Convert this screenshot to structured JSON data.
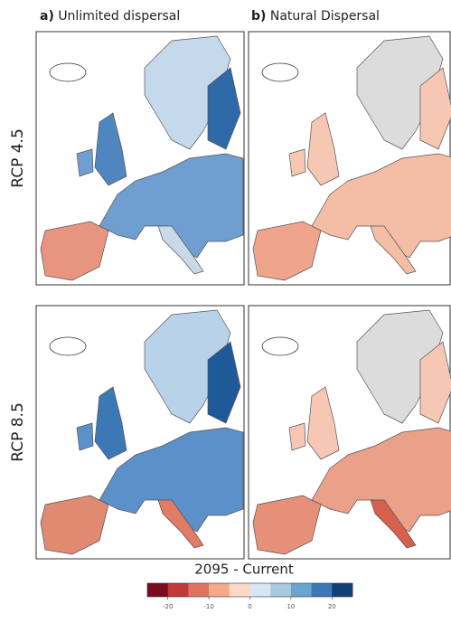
{
  "columns": [
    {
      "letter": "a)",
      "title": "Unlimited dispersal"
    },
    {
      "letter": "b)",
      "title": "Natural Dispersal"
    }
  ],
  "rows": [
    "RCP 4.5",
    "RCP 8.5"
  ],
  "colorbar": {
    "title": "2095 - Current",
    "colors": [
      "#7a0a1e",
      "#c0393b",
      "#e0735f",
      "#f4a98a",
      "#fbd9c6",
      "#d7e6f1",
      "#a6cbe2",
      "#6aa4cf",
      "#3c78b5",
      "#123f75"
    ],
    "lim": [
      -25,
      25
    ],
    "ticks": [
      -20,
      -10,
      0,
      10,
      20
    ]
  }
}
